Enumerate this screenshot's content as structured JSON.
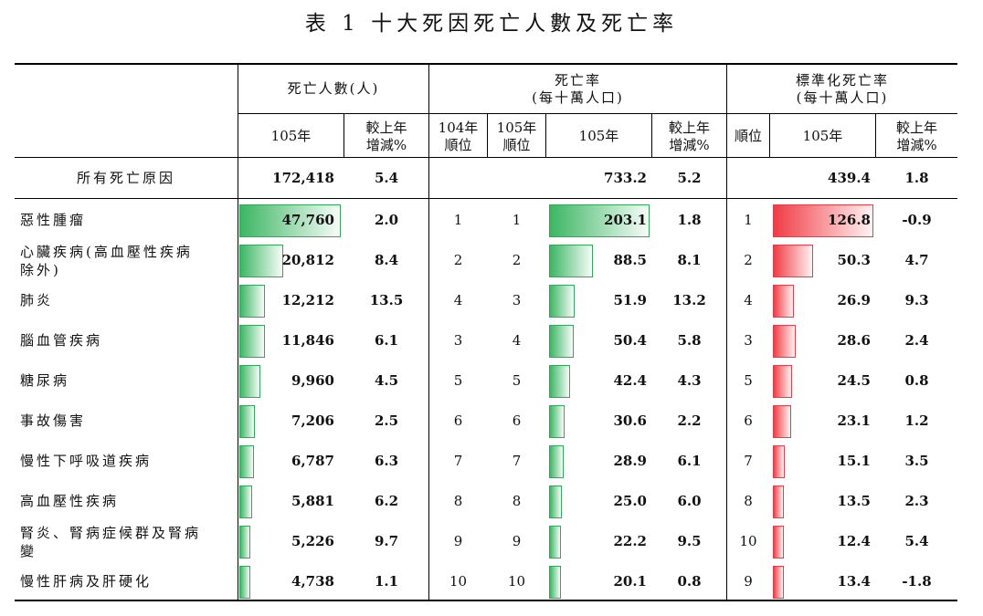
{
  "title": "表 1 十大死因死亡人數及死亡率",
  "headers": {
    "deaths_group": "死亡人數(人)",
    "rate_group_line1": "死亡率",
    "rate_group_line2": "(每十萬人口)",
    "std_group_line1": "標準化死亡率",
    "std_group_line2": "(每十萬人口)",
    "year_105": "105年",
    "yoy_line1": "較上年",
    "yoy_line2": "增減%",
    "rank104_line1": "104年",
    "rank104_line2": "順位",
    "rank105_line1": "105年",
    "rank105_line2": "順位",
    "rank": "順位"
  },
  "total": {
    "label": "所有死亡原因",
    "deaths": "172,418",
    "deaths_chg": "5.4",
    "rate": "733.2",
    "rate_chg": "5.2",
    "std": "439.4",
    "std_chg": "1.8"
  },
  "rows": [
    {
      "label": "惡性腫瘤",
      "deaths": "47,760",
      "deaths_chg": "2.0",
      "rank104": "1",
      "rank105": "1",
      "rate": "203.1",
      "rate_chg": "1.8",
      "std_rank": "1",
      "std": "126.8",
      "std_chg": "-0.9"
    },
    {
      "label": "心臟疾病(高血壓性疾病除外)",
      "label_l1": "心臟疾病(高血壓性疾病",
      "label_l2": "除外)",
      "deaths": "20,812",
      "deaths_chg": "8.4",
      "rank104": "2",
      "rank105": "2",
      "rate": "88.5",
      "rate_chg": "8.1",
      "std_rank": "2",
      "std": "50.3",
      "std_chg": "4.7"
    },
    {
      "label": "肺炎",
      "deaths": "12,212",
      "deaths_chg": "13.5",
      "rank104": "4",
      "rank105": "3",
      "rate": "51.9",
      "rate_chg": "13.2",
      "std_rank": "4",
      "std": "26.9",
      "std_chg": "9.3"
    },
    {
      "label": "腦血管疾病",
      "deaths": "11,846",
      "deaths_chg": "6.1",
      "rank104": "3",
      "rank105": "4",
      "rate": "50.4",
      "rate_chg": "5.8",
      "std_rank": "3",
      "std": "28.6",
      "std_chg": "2.4"
    },
    {
      "label": "糖尿病",
      "deaths": "9,960",
      "deaths_chg": "4.5",
      "rank104": "5",
      "rank105": "5",
      "rate": "42.4",
      "rate_chg": "4.3",
      "std_rank": "5",
      "std": "24.5",
      "std_chg": "0.8"
    },
    {
      "label": "事故傷害",
      "deaths": "7,206",
      "deaths_chg": "2.5",
      "rank104": "6",
      "rank105": "6",
      "rate": "30.6",
      "rate_chg": "2.2",
      "std_rank": "6",
      "std": "23.1",
      "std_chg": "1.2"
    },
    {
      "label": "慢性下呼吸道疾病",
      "deaths": "6,787",
      "deaths_chg": "6.3",
      "rank104": "7",
      "rank105": "7",
      "rate": "28.9",
      "rate_chg": "6.1",
      "std_rank": "7",
      "std": "15.1",
      "std_chg": "3.5"
    },
    {
      "label": "高血壓性疾病",
      "deaths": "5,881",
      "deaths_chg": "6.2",
      "rank104": "8",
      "rank105": "8",
      "rate": "25.0",
      "rate_chg": "6.0",
      "std_rank": "8",
      "std": "13.5",
      "std_chg": "2.3"
    },
    {
      "label": "腎炎、腎病症候群及腎病變",
      "label_l1": "腎炎、腎病症候群及腎病",
      "label_l2": "變",
      "deaths": "5,226",
      "deaths_chg": "9.7",
      "rank104": "9",
      "rank105": "9",
      "rate": "22.2",
      "rate_chg": "9.5",
      "std_rank": "10",
      "std": "12.4",
      "std_chg": "5.4"
    },
    {
      "label": "慢性肝病及肝硬化",
      "deaths": "4,738",
      "deaths_chg": "1.1",
      "rank104": "10",
      "rank105": "10",
      "rate": "20.1",
      "rate_chg": "0.8",
      "std_rank": "9",
      "std": "13.4",
      "std_chg": "-1.8"
    }
  ],
  "bar_values": {
    "deaths": [
      47760,
      20812,
      12212,
      11846,
      9960,
      7206,
      6787,
      5881,
      5226,
      4738
    ],
    "rate": [
      203.1,
      88.5,
      51.9,
      50.4,
      42.4,
      30.6,
      28.9,
      25.0,
      22.2,
      20.1
    ],
    "std": [
      126.8,
      50.3,
      26.9,
      28.6,
      24.5,
      23.1,
      15.1,
      13.5,
      12.4,
      13.4
    ]
  },
  "colors": {
    "bar_green": "#3cb663",
    "bar_red": "#f03c45"
  }
}
